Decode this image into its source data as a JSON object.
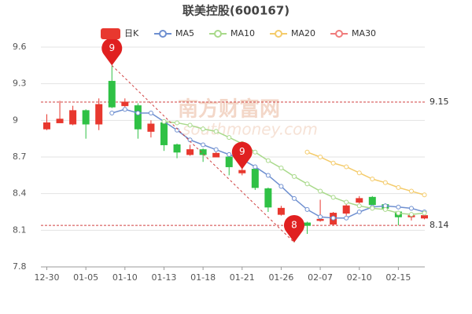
{
  "chart_data": {
    "type": "candlestick",
    "title": "联美控股(600167)",
    "categories": [
      "12-30",
      null,
      null,
      "01-05",
      null,
      null,
      "01-10",
      null,
      null,
      "01-13",
      null,
      null,
      "01-18",
      null,
      null,
      "01-21",
      null,
      null,
      "01-26",
      null,
      null,
      "02-07",
      null,
      null,
      "02-10",
      null,
      null,
      "02-15",
      null,
      null
    ],
    "candle_name": "日K",
    "open": [
      8.93,
      8.98,
      8.97,
      9.08,
      8.97,
      9.32,
      9.12,
      9.12,
      8.91,
      8.98,
      8.8,
      8.72,
      8.76,
      8.7,
      8.7,
      8.57,
      8.6,
      8.44,
      8.23,
      8.2,
      8.16,
      8.18,
      8.15,
      8.24,
      8.33,
      8.37,
      8.31,
      8.25,
      8.21,
      8.2
    ],
    "high": [
      9.05,
      9.16,
      9.12,
      9.09,
      9.18,
      9.45,
      9.18,
      9.14,
      9.0,
      8.99,
      8.81,
      8.8,
      8.77,
      8.74,
      8.72,
      8.61,
      8.61,
      8.45,
      8.3,
      8.21,
      8.17,
      8.35,
      8.25,
      8.33,
      8.38,
      8.38,
      8.32,
      8.26,
      8.24,
      8.24
    ],
    "low": [
      8.92,
      8.98,
      8.96,
      8.85,
      8.92,
      9.1,
      9.11,
      8.85,
      8.86,
      8.75,
      8.69,
      8.71,
      8.66,
      8.7,
      8.55,
      8.55,
      8.43,
      8.25,
      8.22,
      8.0,
      8.07,
      8.17,
      8.14,
      8.22,
      8.32,
      8.3,
      8.27,
      8.14,
      8.18,
      8.19
    ],
    "close": [
      8.98,
      9.01,
      9.08,
      8.97,
      9.13,
      9.11,
      9.15,
      8.93,
      8.97,
      8.8,
      8.74,
      8.76,
      8.72,
      8.73,
      8.62,
      8.59,
      8.45,
      8.29,
      8.28,
      8.16,
      8.14,
      8.19,
      8.24,
      8.3,
      8.36,
      8.31,
      8.28,
      8.21,
      8.22,
      8.22
    ],
    "up_color": "#e8382f",
    "down_color": "#2fc145",
    "series": [
      {
        "name": "MA5",
        "color": "#6e8fd0",
        "values": [
          null,
          null,
          null,
          null,
          null,
          9.06,
          9.09,
          9.06,
          9.06,
          8.99,
          8.92,
          8.84,
          8.8,
          8.76,
          8.72,
          8.68,
          8.62,
          8.55,
          8.46,
          8.36,
          8.27,
          8.21,
          8.2,
          8.2,
          8.25,
          8.29,
          8.3,
          8.29,
          8.28,
          8.25
        ]
      },
      {
        "name": "MA10",
        "color": "#a8d98a",
        "values": [
          null,
          null,
          null,
          null,
          null,
          null,
          null,
          null,
          null,
          8.99,
          8.98,
          8.96,
          8.93,
          8.91,
          8.86,
          8.81,
          8.74,
          8.67,
          8.61,
          8.54,
          8.48,
          8.42,
          8.37,
          8.33,
          8.3,
          8.28,
          8.27,
          8.24,
          8.23,
          8.24
        ]
      },
      {
        "name": "MA20",
        "color": "#f4cb6a",
        "values": [
          null,
          null,
          null,
          null,
          null,
          null,
          null,
          null,
          null,
          null,
          null,
          null,
          null,
          null,
          null,
          null,
          null,
          null,
          null,
          null,
          8.74,
          8.7,
          8.65,
          8.62,
          8.57,
          8.52,
          8.49,
          8.45,
          8.42,
          8.39
        ]
      },
      {
        "name": "MA30",
        "color": "#f07c7c",
        "values": [
          null,
          null,
          null,
          null,
          null,
          null,
          null,
          null,
          null,
          null,
          null,
          null,
          null,
          null,
          null,
          null,
          null,
          null,
          null,
          null,
          null,
          null,
          null,
          null,
          null,
          null,
          null,
          null,
          null,
          null
        ]
      }
    ],
    "ylim": [
      7.8,
      9.6
    ],
    "yticks": [
      7.8,
      8.1,
      8.4,
      8.7,
      9,
      9.3,
      9.6
    ],
    "grid": true,
    "reference_lines": [
      9.15,
      8.14
    ],
    "markers": [
      {
        "index": 5,
        "value": 9.45,
        "label": "9"
      },
      {
        "index": 15,
        "value": 8.6,
        "label": "9"
      },
      {
        "index": 19,
        "value": 8.0,
        "label": "8"
      }
    ],
    "watermark": [
      "南方财富网",
      "southmoney.com"
    ]
  }
}
